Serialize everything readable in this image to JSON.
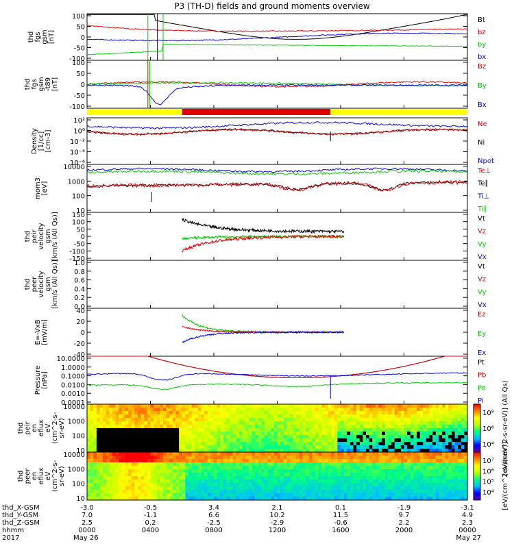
{
  "title": "P3 (TH-D) fields and ground moments overview",
  "colors": {
    "black": "#000000",
    "red": "#e00000",
    "green": "#00cc00",
    "blue": "#0000e0",
    "yellow": "#ffff00"
  },
  "chart_data": [
    {
      "type": "line",
      "ylabel": [
        "thd",
        "fgs",
        "gsm",
        "[nT]"
      ],
      "yticks": [
        "100",
        "50",
        "0",
        "-50",
        "-100"
      ],
      "ylim": [
        -100,
        100
      ],
      "legend": [
        {
          "name": "Bt",
          "color": "black"
        },
        {
          "name": "bz",
          "color": "red"
        },
        {
          "name": "by",
          "color": "green"
        },
        {
          "name": "bx",
          "color": "blue"
        }
      ]
    },
    {
      "type": "line",
      "ylabel": [
        "thd",
        "fgs",
        "gsm",
        "-t89",
        "[nT]"
      ],
      "yticks": [
        "100",
        "50",
        "0",
        "-50",
        "-100"
      ],
      "ylim": [
        -120,
        100
      ],
      "legend": [
        {
          "name": "Bz",
          "color": "red"
        },
        {
          "name": "By",
          "color": "green"
        },
        {
          "name": "Bx",
          "color": "blue"
        }
      ]
    },
    {
      "type": "bar",
      "label": "region bar",
      "segments": [
        {
          "from": 0,
          "to": 0.25,
          "color": "yellow"
        },
        {
          "from": 0.25,
          "to": 0.64,
          "color": "red"
        },
        {
          "from": 0.64,
          "to": 1,
          "color": "yellow"
        }
      ]
    },
    {
      "type": "line",
      "ylabel": [
        "Density",
        "[1/cc]",
        "[cm-3]"
      ],
      "yticks": [
        "10²",
        "10⁰",
        "10⁻²",
        "10⁻⁴",
        "10⁻⁶"
      ],
      "log": true,
      "legend": [
        {
          "name": "Ne",
          "color": "red"
        },
        {
          "name": "Ni",
          "color": "black"
        },
        {
          "name": "Npot",
          "color": "blue"
        }
      ]
    },
    {
      "type": "line",
      "ylabel": [
        "mom3",
        "[eV]"
      ],
      "yticks": [
        "10000",
        "1000",
        "100",
        "10"
      ],
      "log": true,
      "legend": [
        {
          "name": "Te⊥",
          "color": "red"
        },
        {
          "name": "Te∥",
          "color": "black"
        },
        {
          "name": "Ti⊥",
          "color": "blue"
        },
        {
          "name": "Ti∥",
          "color": "green"
        }
      ]
    },
    {
      "type": "line",
      "ylabel": [
        "thd",
        "peir",
        "velocity",
        "gsm",
        "[km/s (All Qs)]"
      ],
      "yticks": [
        "150",
        "100",
        "50",
        "0",
        "-50",
        "-100",
        "-150"
      ],
      "ylim": [
        -150,
        150
      ],
      "legend": [
        {
          "name": "Vt",
          "color": "black"
        },
        {
          "name": "Vz",
          "color": "red"
        },
        {
          "name": "Vy",
          "color": "green"
        },
        {
          "name": "Vx",
          "color": "blue"
        }
      ]
    },
    {
      "type": "line",
      "ylabel": [
        "thd",
        "peer",
        "velocity",
        "gsm",
        "[km/s (All Qs)]"
      ],
      "yticks": [
        "1.0",
        "0.8",
        "0.6",
        "0.4",
        "0.2",
        "0.0"
      ],
      "ylim": [
        0,
        1
      ],
      "legend": [
        {
          "name": "Vt",
          "color": "black"
        },
        {
          "name": "Vz",
          "color": "red"
        },
        {
          "name": "Vy",
          "color": "green"
        },
        {
          "name": "Vx",
          "color": "blue"
        }
      ]
    },
    {
      "type": "line",
      "ylabel": [
        "E=-VxB",
        "[mV/m]"
      ],
      "yticks": [
        "40",
        "20",
        "0",
        "-20",
        "-40"
      ],
      "ylim": [
        -40,
        40
      ],
      "legend": [
        {
          "name": "Ez",
          "color": "red"
        },
        {
          "name": "Ey",
          "color": "green"
        },
        {
          "name": "Ex",
          "color": "blue"
        }
      ]
    },
    {
      "type": "line",
      "ylabel": [
        "Pressure",
        "[nPa]"
      ],
      "yticks": [
        "10.0000",
        "1.0000",
        "0.1000",
        "0.0100",
        "0.0010",
        "0.0001"
      ],
      "log": true,
      "legend": [
        {
          "name": "Pt",
          "color": "black"
        },
        {
          "name": "Pb",
          "color": "red"
        },
        {
          "name": "Pe",
          "color": "green"
        },
        {
          "name": "Pi",
          "color": "blue"
        }
      ]
    },
    {
      "type": "heatmap",
      "ylabel": [
        "thd",
        "peir",
        "en",
        "eflux",
        "eV",
        "(cm^2-s-",
        "sr-eV)"
      ],
      "yticks": [
        "10000",
        "1000",
        "100",
        "10"
      ],
      "log": true,
      "colorbar": {
        "ticks": [
          "10⁸",
          "10⁶",
          "10⁴"
        ],
        "label": "[eV/(cm^2-s-sr-eV)] (All Qs)"
      }
    },
    {
      "type": "heatmap",
      "ylabel": [
        "thd",
        "peer",
        "en",
        "eflux",
        "eV",
        "(cm^2-s-",
        "sr-eV)"
      ],
      "yticks": [
        "10000",
        "1000",
        "100",
        "10"
      ],
      "log": true,
      "colorbar": {
        "ticks": [
          "10⁷",
          "10⁶",
          "10⁵",
          "10⁴"
        ],
        "label": "[eV/(cm^2-s-sr-eV)]"
      }
    }
  ],
  "footer": {
    "rows": [
      {
        "label": "thd_X-GSM",
        "values": [
          "-3.0",
          "-0.5",
          "3.4",
          "2.1",
          "0.1",
          "-1.9",
          "-3.1"
        ]
      },
      {
        "label": "thd_Y-GSM",
        "values": [
          "7.0",
          "-1.1",
          "6.6",
          "10.2",
          "11.5",
          "9.7",
          "4.9"
        ]
      },
      {
        "label": "thd_Z-GSM",
        "values": [
          "2.5",
          "0.2",
          "-2.5",
          "-2.9",
          "-0.6",
          "2.2",
          "2.3"
        ]
      },
      {
        "label": "hhmm",
        "values": [
          "0000",
          "0400",
          "0800",
          "1200",
          "1600",
          "2000",
          "0000"
        ]
      },
      {
        "label": "2017",
        "values": [
          "May 26",
          "",
          "",
          "",
          "",
          "",
          "May 27"
        ]
      }
    ]
  }
}
